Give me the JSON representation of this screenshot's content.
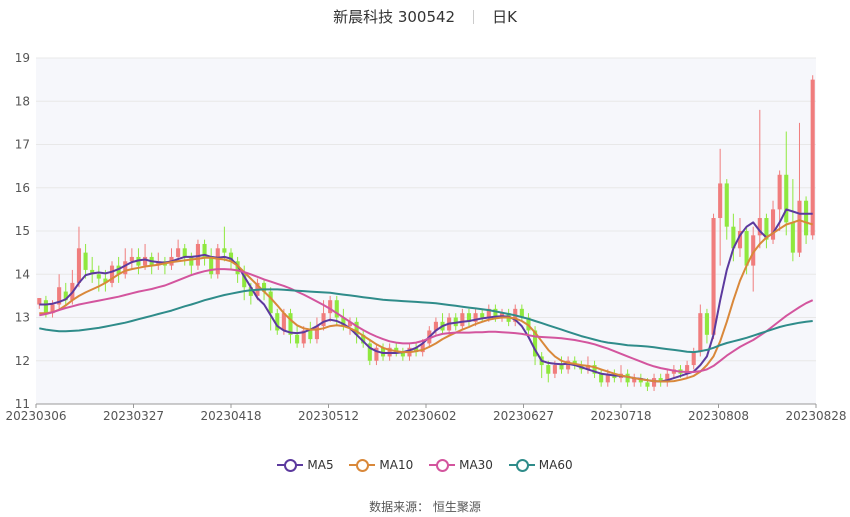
{
  "title": {
    "name": "新晨科技 300542",
    "period": "日K"
  },
  "source": {
    "label": "数据来源：",
    "provider": "恒生聚源"
  },
  "colors": {
    "up": "#f07d7d",
    "down": "#8fe83e",
    "grid": "#e8e8e8",
    "plot_bg": "#f6f7fb",
    "axis_text": "#555555"
  },
  "chart_data": {
    "type": "candlestick",
    "ylim": [
      11,
      19
    ],
    "yticks": [
      11,
      12,
      13,
      14,
      15,
      16,
      17,
      18,
      19
    ],
    "xticks": [
      "20230306",
      "20230327",
      "20230418",
      "20230512",
      "20230602",
      "20230627",
      "20230718",
      "20230808",
      "20230828"
    ],
    "grid": "horizontal",
    "legend_position": "bottom",
    "ohlc": [
      [
        13.3,
        13.45,
        13.2,
        13.45
      ],
      [
        13.4,
        13.1,
        13.0,
        13.5
      ],
      [
        13.1,
        13.3,
        13.0,
        13.4
      ],
      [
        13.3,
        13.7,
        13.2,
        14.0
      ],
      [
        13.6,
        13.4,
        13.3,
        13.8
      ],
      [
        13.4,
        13.8,
        13.3,
        14.1
      ],
      [
        13.8,
        14.6,
        13.7,
        15.1
      ],
      [
        14.5,
        14.1,
        13.9,
        14.7
      ],
      [
        14.1,
        14.0,
        13.8,
        14.4
      ],
      [
        14.0,
        13.9,
        13.6,
        14.2
      ],
      [
        13.9,
        13.8,
        13.6,
        14.1
      ],
      [
        13.8,
        14.2,
        13.7,
        14.3
      ],
      [
        14.2,
        14.0,
        13.8,
        14.4
      ],
      [
        14.0,
        14.3,
        13.9,
        14.6
      ],
      [
        14.3,
        14.4,
        14.1,
        14.6
      ],
      [
        14.4,
        14.2,
        14.0,
        14.6
      ],
      [
        14.2,
        14.4,
        14.1,
        14.7
      ],
      [
        14.4,
        14.2,
        14.0,
        14.5
      ],
      [
        14.2,
        14.3,
        14.1,
        14.5
      ],
      [
        14.3,
        14.2,
        14.0,
        14.4
      ],
      [
        14.2,
        14.4,
        14.1,
        14.6
      ],
      [
        14.4,
        14.6,
        14.3,
        14.8
      ],
      [
        14.6,
        14.4,
        14.2,
        14.7
      ],
      [
        14.4,
        14.2,
        14.0,
        14.5
      ],
      [
        14.2,
        14.7,
        14.1,
        14.8
      ],
      [
        14.7,
        14.4,
        14.2,
        14.8
      ],
      [
        14.4,
        14.0,
        13.9,
        14.6
      ],
      [
        14.0,
        14.6,
        13.9,
        14.7
      ],
      [
        14.6,
        14.5,
        14.3,
        15.1
      ],
      [
        14.5,
        14.3,
        14.1,
        14.6
      ],
      [
        14.3,
        14.0,
        13.8,
        14.4
      ],
      [
        14.0,
        13.7,
        13.4,
        14.2
      ],
      [
        13.7,
        13.5,
        13.3,
        13.8
      ],
      [
        13.5,
        13.8,
        13.4,
        13.9
      ],
      [
        13.8,
        13.6,
        13.4,
        13.9
      ],
      [
        13.6,
        13.1,
        12.7,
        13.7
      ],
      [
        13.1,
        12.7,
        12.6,
        13.2
      ],
      [
        12.7,
        13.1,
        12.6,
        13.2
      ],
      [
        13.1,
        12.6,
        12.4,
        13.2
      ],
      [
        12.6,
        12.4,
        12.3,
        12.8
      ],
      [
        12.4,
        12.7,
        12.3,
        12.8
      ],
      [
        12.7,
        12.5,
        12.4,
        12.9
      ],
      [
        12.5,
        12.8,
        12.4,
        13.0
      ],
      [
        12.8,
        13.1,
        12.7,
        13.4
      ],
      [
        13.1,
        13.4,
        12.9,
        13.5
      ],
      [
        13.4,
        13.0,
        12.8,
        13.5
      ],
      [
        13.0,
        12.8,
        12.7,
        13.2
      ],
      [
        12.8,
        12.9,
        12.6,
        13.0
      ],
      [
        12.9,
        12.6,
        12.4,
        13.0
      ],
      [
        12.6,
        12.4,
        12.3,
        12.7
      ],
      [
        12.4,
        12.0,
        11.9,
        12.5
      ],
      [
        12.0,
        12.3,
        11.9,
        12.4
      ],
      [
        12.3,
        12.1,
        12.0,
        12.4
      ],
      [
        12.1,
        12.3,
        12.0,
        12.4
      ],
      [
        12.3,
        12.2,
        12.1,
        12.4
      ],
      [
        12.2,
        12.1,
        12.0,
        12.3
      ],
      [
        12.1,
        12.3,
        12.0,
        12.4
      ],
      [
        12.3,
        12.2,
        12.1,
        12.4
      ],
      [
        12.2,
        12.4,
        12.1,
        12.5
      ],
      [
        12.4,
        12.7,
        12.3,
        12.8
      ],
      [
        12.7,
        12.9,
        12.6,
        13.0
      ],
      [
        12.9,
        12.7,
        12.6,
        13.1
      ],
      [
        12.7,
        13.0,
        12.6,
        13.1
      ],
      [
        13.0,
        12.8,
        12.7,
        13.1
      ],
      [
        12.8,
        13.1,
        12.7,
        13.2
      ],
      [
        13.1,
        12.9,
        12.8,
        13.2
      ],
      [
        12.9,
        13.1,
        12.8,
        13.2
      ],
      [
        13.1,
        13.0,
        12.9,
        13.2
      ],
      [
        13.0,
        13.2,
        12.9,
        13.3
      ],
      [
        13.2,
        13.0,
        12.9,
        13.3
      ],
      [
        13.0,
        13.1,
        12.9,
        13.2
      ],
      [
        13.1,
        12.9,
        12.8,
        13.2
      ],
      [
        12.9,
        13.2,
        12.8,
        13.3
      ],
      [
        13.2,
        13.0,
        12.9,
        13.3
      ],
      [
        13.0,
        12.7,
        12.6,
        13.1
      ],
      [
        12.7,
        12.1,
        11.9,
        12.8
      ],
      [
        12.1,
        11.9,
        11.6,
        12.2
      ],
      [
        11.9,
        11.7,
        11.5,
        12.0
      ],
      [
        11.7,
        11.9,
        11.6,
        12.0
      ],
      [
        11.9,
        11.8,
        11.7,
        12.1
      ],
      [
        11.8,
        12.0,
        11.7,
        12.1
      ],
      [
        12.0,
        11.9,
        11.8,
        12.1
      ],
      [
        11.9,
        11.8,
        11.7,
        12.0
      ],
      [
        11.8,
        11.9,
        11.7,
        12.1
      ],
      [
        11.9,
        11.7,
        11.6,
        12.0
      ],
      [
        11.7,
        11.5,
        11.4,
        11.8
      ],
      [
        11.5,
        11.7,
        11.4,
        11.8
      ],
      [
        11.7,
        11.6,
        11.5,
        11.8
      ],
      [
        11.6,
        11.7,
        11.5,
        11.9
      ],
      [
        11.7,
        11.5,
        11.4,
        11.8
      ],
      [
        11.5,
        11.6,
        11.4,
        11.7
      ],
      [
        11.6,
        11.5,
        11.4,
        11.7
      ],
      [
        11.5,
        11.4,
        11.3,
        11.6
      ],
      [
        11.4,
        11.6,
        11.3,
        11.7
      ],
      [
        11.6,
        11.5,
        11.4,
        11.7
      ],
      [
        11.5,
        11.7,
        11.4,
        11.8
      ],
      [
        11.7,
        11.8,
        11.6,
        11.9
      ],
      [
        11.8,
        11.7,
        11.6,
        11.9
      ],
      [
        11.7,
        11.9,
        11.6,
        12.0
      ],
      [
        11.9,
        12.2,
        11.8,
        12.3
      ],
      [
        12.2,
        13.1,
        12.1,
        13.3
      ],
      [
        13.1,
        12.6,
        12.4,
        13.2
      ],
      [
        12.6,
        15.3,
        12.5,
        15.4
      ],
      [
        15.3,
        16.1,
        14.2,
        16.9
      ],
      [
        16.1,
        15.1,
        14.8,
        16.2
      ],
      [
        15.1,
        14.6,
        14.3,
        15.4
      ],
      [
        14.6,
        15.0,
        14.4,
        15.3
      ],
      [
        15.0,
        14.2,
        14.0,
        15.1
      ],
      [
        14.2,
        14.9,
        13.6,
        15.1
      ],
      [
        14.9,
        15.3,
        14.6,
        17.8
      ],
      [
        15.3,
        14.8,
        14.6,
        15.4
      ],
      [
        14.8,
        15.5,
        14.7,
        15.7
      ],
      [
        15.5,
        16.3,
        15.0,
        16.4
      ],
      [
        16.3,
        15.2,
        14.9,
        17.3
      ],
      [
        15.2,
        14.5,
        14.3,
        16.2
      ],
      [
        14.5,
        15.7,
        14.4,
        17.5
      ],
      [
        15.7,
        14.9,
        14.7,
        15.8
      ],
      [
        14.9,
        18.5,
        14.8,
        18.6
      ]
    ],
    "series": [
      {
        "name": "MA5",
        "color": "#5c3a9e",
        "values": [
          13.3,
          13.3,
          13.32,
          13.36,
          13.42,
          13.58,
          13.8,
          13.98,
          14.02,
          14.04,
          14.02,
          14.06,
          14.12,
          14.2,
          14.28,
          14.32,
          14.34,
          14.3,
          14.28,
          14.27,
          14.3,
          14.35,
          14.4,
          14.4,
          14.42,
          14.45,
          14.4,
          14.38,
          14.4,
          14.36,
          14.2,
          13.95,
          13.7,
          13.45,
          13.3,
          13.05,
          12.8,
          12.7,
          12.65,
          12.64,
          12.66,
          12.72,
          12.8,
          12.9,
          12.95,
          12.92,
          12.85,
          12.75,
          12.6,
          12.45,
          12.3,
          12.22,
          12.18,
          12.18,
          12.18,
          12.2,
          12.24,
          12.3,
          12.4,
          12.55,
          12.7,
          12.8,
          12.86,
          12.88,
          12.9,
          12.92,
          12.95,
          12.98,
          13.0,
          13.02,
          13.03,
          13.02,
          12.95,
          12.8,
          12.55,
          12.25,
          12.0,
          11.95,
          11.93,
          11.92,
          11.93,
          11.9,
          11.85,
          11.8,
          11.75,
          11.7,
          11.68,
          11.66,
          11.65,
          11.63,
          11.6,
          11.58,
          11.55,
          11.53,
          11.52,
          11.55,
          11.6,
          11.65,
          11.7,
          11.75,
          11.9,
          12.1,
          12.6,
          13.4,
          14.1,
          14.6,
          14.9,
          15.1,
          15.2,
          15.0,
          14.85,
          14.95,
          15.2,
          15.5,
          15.45,
          15.4,
          15.4,
          15.4
        ]
      },
      {
        "name": "MA10",
        "color": "#d9883a",
        "values": [
          13.1,
          13.1,
          13.12,
          13.18,
          13.28,
          13.4,
          13.5,
          13.58,
          13.65,
          13.72,
          13.8,
          13.9,
          14.0,
          14.08,
          14.12,
          14.15,
          14.18,
          14.2,
          14.22,
          14.25,
          14.28,
          14.3,
          14.32,
          14.34,
          14.36,
          14.38,
          14.38,
          14.36,
          14.34,
          14.3,
          14.2,
          14.05,
          13.9,
          13.75,
          13.6,
          13.45,
          13.28,
          13.1,
          12.95,
          12.82,
          12.75,
          12.72,
          12.72,
          12.75,
          12.8,
          12.82,
          12.8,
          12.75,
          12.68,
          12.58,
          12.48,
          12.38,
          12.3,
          12.25,
          12.22,
          12.2,
          12.2,
          12.22,
          12.25,
          12.32,
          12.4,
          12.5,
          12.58,
          12.65,
          12.72,
          12.78,
          12.85,
          12.9,
          12.95,
          12.98,
          13.0,
          13.0,
          12.98,
          12.92,
          12.82,
          12.65,
          12.45,
          12.25,
          12.1,
          12.0,
          11.95,
          11.93,
          11.9,
          11.88,
          11.85,
          11.8,
          11.75,
          11.7,
          11.66,
          11.63,
          11.6,
          11.57,
          11.55,
          11.53,
          11.52,
          11.52,
          11.53,
          11.56,
          11.6,
          11.65,
          11.75,
          11.9,
          12.1,
          12.45,
          12.9,
          13.4,
          13.85,
          14.2,
          14.5,
          14.7,
          14.85,
          14.95,
          15.05,
          15.15,
          15.2,
          15.25,
          15.2,
          15.15
        ]
      },
      {
        "name": "MA30",
        "color": "#d3559e",
        "values": [
          13.05,
          13.08,
          13.12,
          13.17,
          13.22,
          13.26,
          13.3,
          13.33,
          13.36,
          13.39,
          13.42,
          13.45,
          13.48,
          13.52,
          13.56,
          13.6,
          13.63,
          13.66,
          13.7,
          13.74,
          13.8,
          13.86,
          13.92,
          13.98,
          14.03,
          14.07,
          14.1,
          14.12,
          14.12,
          14.11,
          14.09,
          14.05,
          14.0,
          13.94,
          13.88,
          13.83,
          13.78,
          13.73,
          13.67,
          13.6,
          13.53,
          13.45,
          13.37,
          13.29,
          13.2,
          13.1,
          13.0,
          12.9,
          12.8,
          12.71,
          12.63,
          12.56,
          12.5,
          12.45,
          12.42,
          12.4,
          12.4,
          12.42,
          12.46,
          12.52,
          12.58,
          12.62,
          12.64,
          12.65,
          12.65,
          12.65,
          12.66,
          12.66,
          12.67,
          12.67,
          12.66,
          12.65,
          12.64,
          12.62,
          12.59,
          12.56,
          12.55,
          12.54,
          12.53,
          12.52,
          12.5,
          12.48,
          12.45,
          12.42,
          12.38,
          12.33,
          12.28,
          12.22,
          12.16,
          12.1,
          12.04,
          11.98,
          11.92,
          11.87,
          11.83,
          11.8,
          11.77,
          11.75,
          11.74,
          11.74,
          11.76,
          11.8,
          11.88,
          12.0,
          12.12,
          12.22,
          12.32,
          12.4,
          12.48,
          12.58,
          12.68,
          12.8,
          12.92,
          13.04,
          13.14,
          13.24,
          13.33,
          13.4
        ]
      },
      {
        "name": "MA60",
        "color": "#2f8c8a",
        "values": [
          12.75,
          12.72,
          12.7,
          12.68,
          12.68,
          12.69,
          12.7,
          12.72,
          12.74,
          12.76,
          12.79,
          12.82,
          12.85,
          12.88,
          12.92,
          12.96,
          13.0,
          13.04,
          13.08,
          13.12,
          13.16,
          13.21,
          13.26,
          13.3,
          13.35,
          13.4,
          13.44,
          13.48,
          13.52,
          13.55,
          13.58,
          13.61,
          13.63,
          13.64,
          13.65,
          13.65,
          13.65,
          13.64,
          13.63,
          13.62,
          13.61,
          13.6,
          13.59,
          13.58,
          13.57,
          13.55,
          13.53,
          13.51,
          13.49,
          13.47,
          13.45,
          13.43,
          13.41,
          13.4,
          13.39,
          13.38,
          13.37,
          13.36,
          13.35,
          13.34,
          13.33,
          13.31,
          13.29,
          13.27,
          13.25,
          13.23,
          13.21,
          13.19,
          13.17,
          13.14,
          13.11,
          13.08,
          13.05,
          13.01,
          12.97,
          12.92,
          12.87,
          12.82,
          12.77,
          12.72,
          12.67,
          12.62,
          12.57,
          12.53,
          12.49,
          12.45,
          12.42,
          12.4,
          12.38,
          12.36,
          12.35,
          12.34,
          12.33,
          12.31,
          12.29,
          12.27,
          12.25,
          12.23,
          12.21,
          12.2,
          12.22,
          12.25,
          12.3,
          12.36,
          12.41,
          12.45,
          12.49,
          12.53,
          12.58,
          12.63,
          12.68,
          12.73,
          12.78,
          12.82,
          12.85,
          12.88,
          12.9,
          12.92
        ]
      }
    ]
  }
}
